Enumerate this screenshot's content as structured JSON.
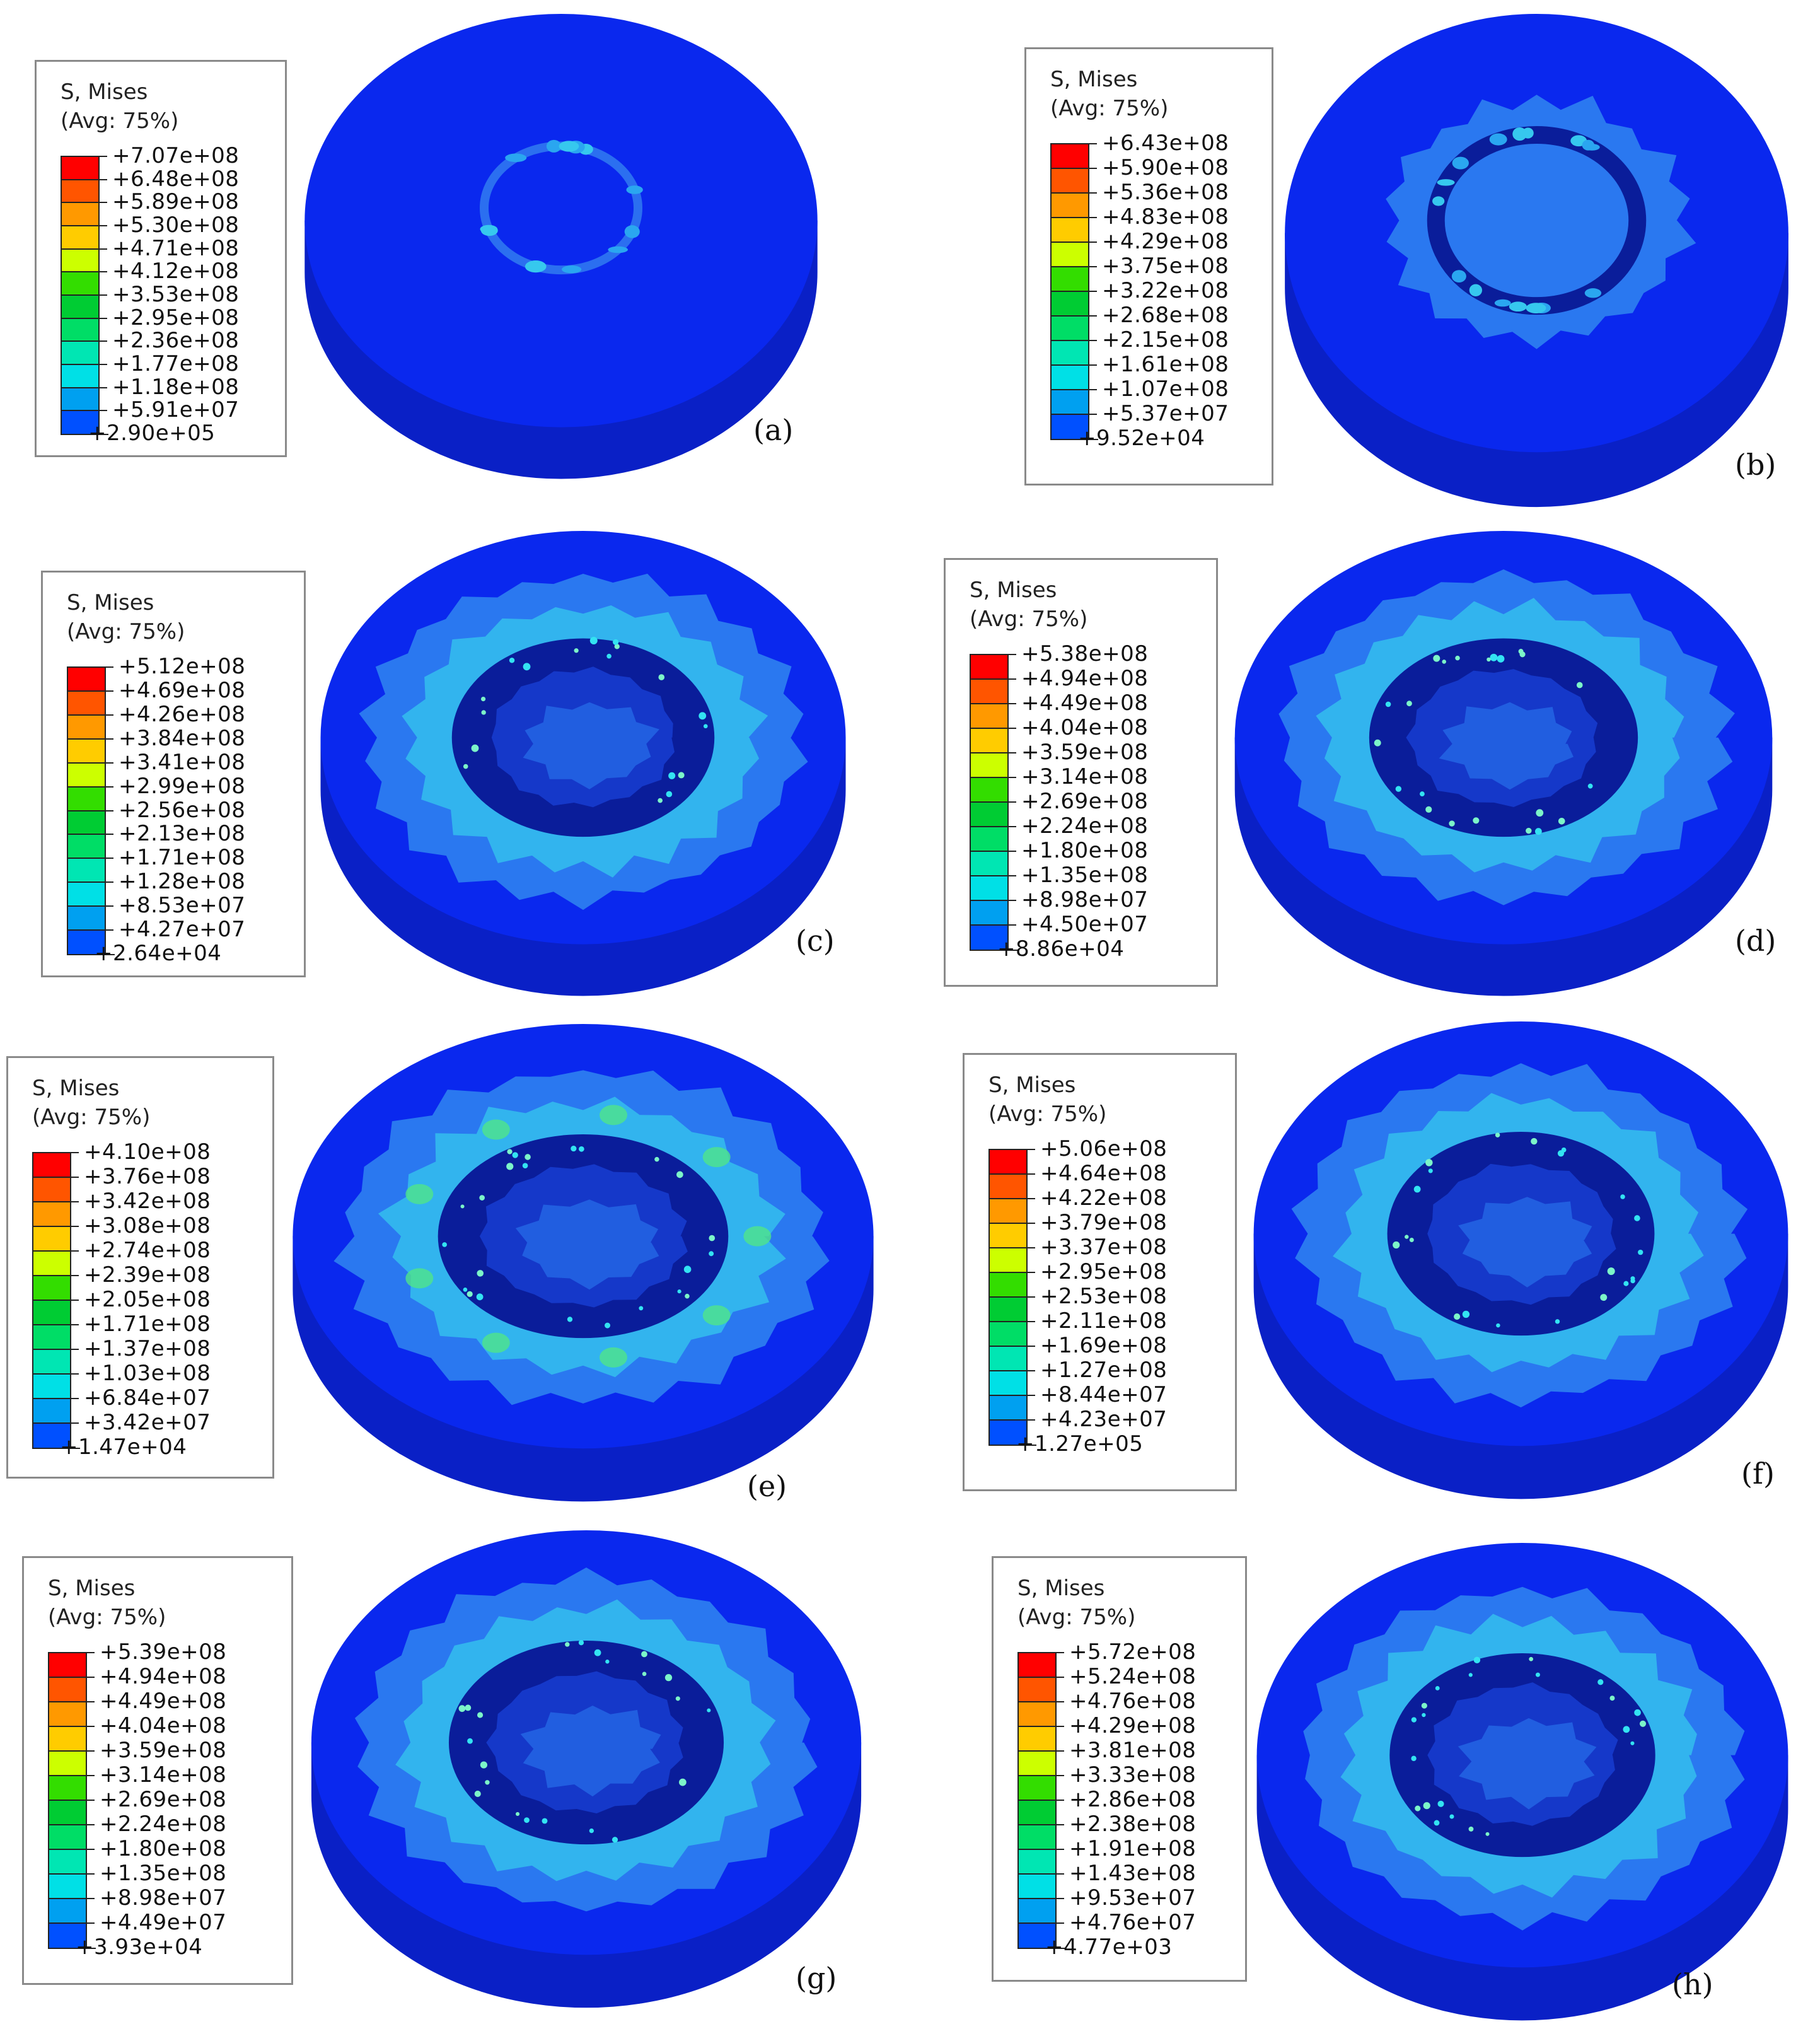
{
  "legend_colors": [
    "#ff0000",
    "#ff5500",
    "#ff9900",
    "#ffcc00",
    "#ccff00",
    "#33dd00",
    "#00cc33",
    "#00dd66",
    "#00e6b3",
    "#00e0e6",
    "#00a0f0",
    "#0050ff",
    "#0000ff"
  ],
  "contour_colors": {
    "base": "#0a28ee",
    "side": "#0a20c6",
    "band": "#2a78f0",
    "band_bright": "#36c8ee",
    "band_hot": "#4fe58a",
    "ring_dark": "#0a1d9a",
    "ring_inner": "#1538c9"
  },
  "panels": [
    {
      "id": "a",
      "label": "(a)",
      "title": "S, Mises",
      "avg": "(Avg: 75%)",
      "values": [
        "+7.07e+08",
        "+6.48e+08",
        "+5.89e+08",
        "+5.30e+08",
        "+4.71e+08",
        "+4.12e+08",
        "+3.53e+08",
        "+2.95e+08",
        "+2.36e+08",
        "+1.77e+08",
        "+1.18e+08",
        "+5.91e+07",
        "+2.90e+05"
      ]
    },
    {
      "id": "b",
      "label": "(b)",
      "title": "S, Mises",
      "avg": "(Avg: 75%)",
      "values": [
        "+6.43e+08",
        "+5.90e+08",
        "+5.36e+08",
        "+4.83e+08",
        "+4.29e+08",
        "+3.75e+08",
        "+3.22e+08",
        "+2.68e+08",
        "+2.15e+08",
        "+1.61e+08",
        "+1.07e+08",
        "+5.37e+07",
        "+9.52e+04"
      ]
    },
    {
      "id": "c",
      "label": "(c)",
      "title": "S, Mises",
      "avg": "(Avg: 75%)",
      "values": [
        "+5.12e+08",
        "+4.69e+08",
        "+4.26e+08",
        "+3.84e+08",
        "+3.41e+08",
        "+2.99e+08",
        "+2.56e+08",
        "+2.13e+08",
        "+1.71e+08",
        "+1.28e+08",
        "+8.53e+07",
        "+4.27e+07",
        "+2.64e+04"
      ]
    },
    {
      "id": "d",
      "label": "(d)",
      "title": "S, Mises",
      "avg": "(Avg: 75%)",
      "values": [
        "+5.38e+08",
        "+4.94e+08",
        "+4.49e+08",
        "+4.04e+08",
        "+3.59e+08",
        "+3.14e+08",
        "+2.69e+08",
        "+2.24e+08",
        "+1.80e+08",
        "+1.35e+08",
        "+8.98e+07",
        "+4.50e+07",
        "+8.86e+04"
      ]
    },
    {
      "id": "e",
      "label": "(e)",
      "title": "S, Mises",
      "avg": "(Avg: 75%)",
      "values": [
        "+4.10e+08",
        "+3.76e+08",
        "+3.42e+08",
        "+3.08e+08",
        "+2.74e+08",
        "+2.39e+08",
        "+2.05e+08",
        "+1.71e+08",
        "+1.37e+08",
        "+1.03e+08",
        "+6.84e+07",
        "+3.42e+07",
        "+1.47e+04"
      ]
    },
    {
      "id": "f",
      "label": "(f)",
      "title": "S, Mises",
      "avg": "(Avg: 75%)",
      "values": [
        "+5.06e+08",
        "+4.64e+08",
        "+4.22e+08",
        "+3.79e+08",
        "+3.37e+08",
        "+2.95e+08",
        "+2.53e+08",
        "+2.11e+08",
        "+1.69e+08",
        "+1.27e+08",
        "+8.44e+07",
        "+4.23e+07",
        "+1.27e+05"
      ]
    },
    {
      "id": "g",
      "label": "(g)",
      "title": "S, Mises",
      "avg": "(Avg: 75%)",
      "values": [
        "+5.39e+08",
        "+4.94e+08",
        "+4.49e+08",
        "+4.04e+08",
        "+3.59e+08",
        "+3.14e+08",
        "+2.69e+08",
        "+2.24e+08",
        "+1.80e+08",
        "+1.35e+08",
        "+8.98e+07",
        "+4.49e+07",
        "+3.93e+04"
      ]
    },
    {
      "id": "h",
      "label": "(h)",
      "title": "S, Mises",
      "avg": "(Avg: 75%)",
      "values": [
        "+5.72e+08",
        "+5.24e+08",
        "+4.76e+08",
        "+4.29e+08",
        "+3.81e+08",
        "+3.33e+08",
        "+2.86e+08",
        "+2.38e+08",
        "+1.91e+08",
        "+1.43e+08",
        "+9.53e+07",
        "+4.76e+07",
        "+4.77e+03"
      ]
    }
  ]
}
